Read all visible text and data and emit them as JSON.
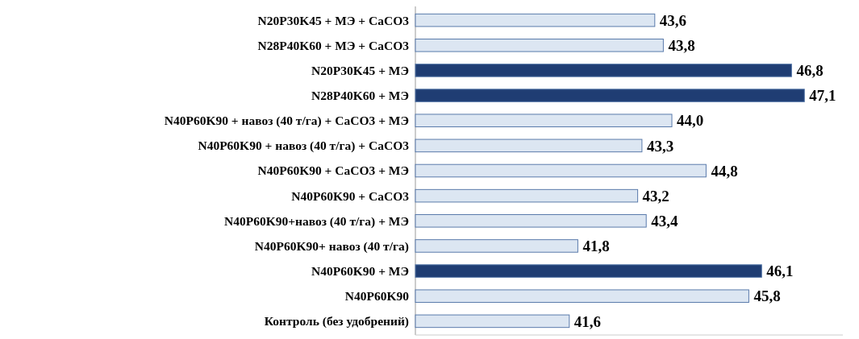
{
  "chart_data": {
    "type": "bar",
    "orientation": "horizontal",
    "categories": [
      "N20P30K45 + МЭ + CaCO3",
      "N28P40K60 + МЭ + CaCO3",
      "N20P30K45 + МЭ",
      "N28P40K60 + МЭ",
      "N40P60K90 + навоз (40 т/га) + CaCO3 + МЭ",
      "N40P60K90 + навоз (40 т/га) + CaCO3",
      "N40P60K90 + CaCO3 + МЭ",
      "N40P60K90 + CaCO3",
      "N40P60K90+навоз (40 т/га) + МЭ",
      "N40P60K90+ навоз (40 т/га)",
      "N40P60K90 + МЭ",
      "N40P60K90",
      "Контроль (без удобрений)"
    ],
    "values": [
      43.6,
      43.8,
      46.8,
      47.1,
      44.0,
      43.3,
      44.8,
      43.2,
      43.4,
      41.8,
      46.1,
      45.8,
      41.6
    ],
    "value_labels": [
      "43,6",
      "43,8",
      "46,8",
      "47,1",
      "44,0",
      "43,3",
      "44,8",
      "43,2",
      "43,4",
      "41,8",
      "46,1",
      "45,8",
      "41,6"
    ],
    "colors": [
      "#dce6f2",
      "#dce6f2",
      "#1f3d73",
      "#1f3d73",
      "#dce6f2",
      "#dce6f2",
      "#dce6f2",
      "#dce6f2",
      "#dce6f2",
      "#dce6f2",
      "#1f3d73",
      "#dce6f2",
      "#dce6f2"
    ],
    "xlim": [
      38,
      48
    ]
  }
}
